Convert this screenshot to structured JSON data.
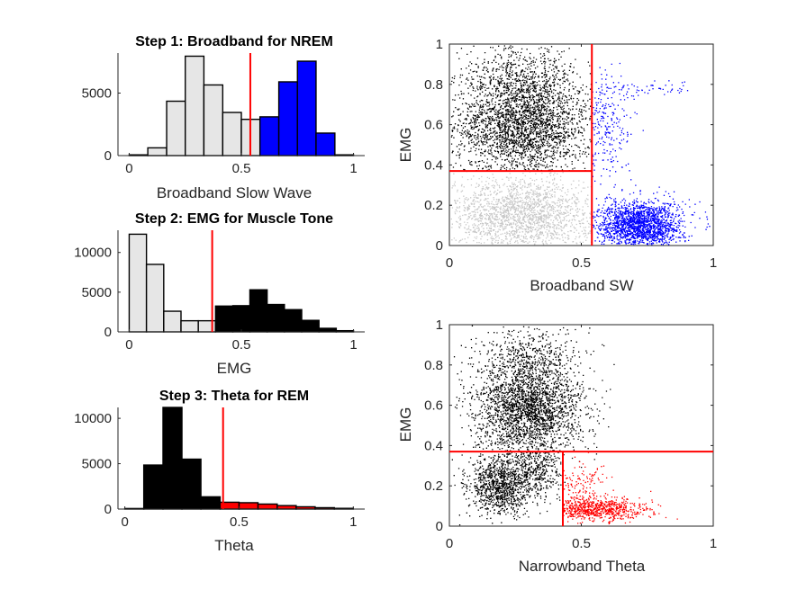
{
  "colors": {
    "nrem": "#0000ff",
    "wake": "#000000",
    "rem": "#ff0000",
    "other": "#e6e6e6",
    "scatter_gray": "#c8c8c8",
    "threshold": "#ff0000"
  },
  "chart_data": [
    {
      "id": "hist-broadband",
      "type": "bar",
      "title": "Step 1: Broadband for NREM",
      "xlabel": "Broadband Slow Wave",
      "ylabel": "",
      "xlim": [
        -0.05,
        1.05
      ],
      "ylim": [
        0,
        8200
      ],
      "x_ticks": [
        "0",
        "0.5",
        "1"
      ],
      "y_ticks": [
        "0",
        "5000"
      ],
      "bins": [
        {
          "x0": 0.0,
          "x1": 0.083,
          "value": 60,
          "group": "other"
        },
        {
          "x0": 0.083,
          "x1": 0.167,
          "value": 620,
          "group": "other"
        },
        {
          "x0": 0.167,
          "x1": 0.25,
          "value": 4350,
          "group": "other"
        },
        {
          "x0": 0.25,
          "x1": 0.333,
          "value": 7950,
          "group": "other"
        },
        {
          "x0": 0.333,
          "x1": 0.417,
          "value": 5650,
          "group": "other"
        },
        {
          "x0": 0.417,
          "x1": 0.5,
          "value": 3450,
          "group": "other"
        },
        {
          "x0": 0.5,
          "x1": 0.583,
          "value": 2900,
          "group": "other"
        },
        {
          "x0": 0.583,
          "x1": 0.667,
          "value": 3100,
          "group": "nrem"
        },
        {
          "x0": 0.667,
          "x1": 0.75,
          "value": 5900,
          "group": "nrem"
        },
        {
          "x0": 0.75,
          "x1": 0.833,
          "value": 7550,
          "group": "nrem"
        },
        {
          "x0": 0.833,
          "x1": 0.917,
          "value": 1800,
          "group": "nrem"
        },
        {
          "x0": 0.917,
          "x1": 1.0,
          "value": 60,
          "group": "nrem"
        }
      ],
      "threshold": 0.54
    },
    {
      "id": "hist-emg",
      "type": "bar",
      "title": "Step 2: EMG for Muscle Tone",
      "xlabel": "EMG",
      "ylabel": "",
      "xlim": [
        -0.05,
        1.05
      ],
      "ylim": [
        0,
        12800
      ],
      "x_ticks": [
        "0",
        "0.5",
        "1"
      ],
      "y_ticks": [
        "0",
        "5000",
        "10000"
      ],
      "bins": [
        {
          "x0": 0.0,
          "x1": 0.077,
          "value": 12300,
          "group": "other"
        },
        {
          "x0": 0.077,
          "x1": 0.154,
          "value": 8500,
          "group": "other"
        },
        {
          "x0": 0.154,
          "x1": 0.231,
          "value": 2600,
          "group": "other"
        },
        {
          "x0": 0.231,
          "x1": 0.308,
          "value": 1400,
          "group": "other"
        },
        {
          "x0": 0.308,
          "x1": 0.385,
          "value": 1400,
          "group": "other"
        },
        {
          "x0": 0.385,
          "x1": 0.462,
          "value": 3250,
          "group": "wake"
        },
        {
          "x0": 0.462,
          "x1": 0.538,
          "value": 3300,
          "group": "wake"
        },
        {
          "x0": 0.538,
          "x1": 0.615,
          "value": 5300,
          "group": "wake"
        },
        {
          "x0": 0.615,
          "x1": 0.692,
          "value": 3450,
          "group": "wake"
        },
        {
          "x0": 0.692,
          "x1": 0.769,
          "value": 2800,
          "group": "wake"
        },
        {
          "x0": 0.769,
          "x1": 0.846,
          "value": 1450,
          "group": "wake"
        },
        {
          "x0": 0.846,
          "x1": 0.923,
          "value": 450,
          "group": "wake"
        },
        {
          "x0": 0.923,
          "x1": 1.0,
          "value": 150,
          "group": "wake"
        }
      ],
      "threshold": 0.37
    },
    {
      "id": "hist-theta",
      "type": "bar",
      "title": "Step 3: Theta for REM",
      "xlabel": "Theta",
      "ylabel": "",
      "xlim": [
        -0.03,
        1.05
      ],
      "ylim": [
        0,
        11200
      ],
      "x_ticks": [
        "0",
        "0.5",
        "1"
      ],
      "y_ticks": [
        "0",
        "5000",
        "10000"
      ],
      "bins": [
        {
          "x0": 0.0,
          "x1": 0.083,
          "value": 60,
          "group": "wake"
        },
        {
          "x0": 0.083,
          "x1": 0.167,
          "value": 4850,
          "group": "wake"
        },
        {
          "x0": 0.167,
          "x1": 0.25,
          "value": 11200,
          "group": "wake"
        },
        {
          "x0": 0.25,
          "x1": 0.333,
          "value": 5500,
          "group": "wake"
        },
        {
          "x0": 0.333,
          "x1": 0.417,
          "value": 1350,
          "group": "wake"
        },
        {
          "x0": 0.417,
          "x1": 0.5,
          "value": 750,
          "group": "rem"
        },
        {
          "x0": 0.5,
          "x1": 0.583,
          "value": 700,
          "group": "rem"
        },
        {
          "x0": 0.583,
          "x1": 0.667,
          "value": 550,
          "group": "rem"
        },
        {
          "x0": 0.667,
          "x1": 0.75,
          "value": 380,
          "group": "rem"
        },
        {
          "x0": 0.75,
          "x1": 0.833,
          "value": 250,
          "group": "rem"
        },
        {
          "x0": 0.833,
          "x1": 0.917,
          "value": 150,
          "group": "rem"
        },
        {
          "x0": 0.917,
          "x1": 1.0,
          "value": 80,
          "group": "rem"
        }
      ],
      "threshold": 0.43
    },
    {
      "id": "scatter-broadband-emg",
      "type": "scatter",
      "xlabel": "Broadband SW",
      "ylabel": "EMG",
      "xlim": [
        0,
        1
      ],
      "ylim": [
        0,
        1
      ],
      "x_ticks": [
        "0",
        "0.5",
        "1"
      ],
      "y_ticks": [
        "0",
        "0.2",
        "0.4",
        "0.6",
        "0.8",
        "1"
      ],
      "threshold_x": 0.54,
      "threshold_y": 0.37,
      "clusters": [
        {
          "group": "wake",
          "cx": 0.28,
          "cy": 0.6,
          "sx": 0.13,
          "sy": 0.13,
          "n": 2600,
          "xmax": 0.54,
          "ymin": 0.37
        },
        {
          "group": "wake",
          "cx": 0.25,
          "cy": 0.85,
          "sx": 0.12,
          "sy": 0.07,
          "n": 400,
          "xmax": 0.54,
          "ymin": 0.37
        },
        {
          "group": "other",
          "cx": 0.27,
          "cy": 0.15,
          "sx": 0.14,
          "sy": 0.1,
          "n": 1800,
          "xmax": 0.54,
          "ymax": 0.37
        },
        {
          "group": "nrem",
          "cx": 0.72,
          "cy": 0.1,
          "sx": 0.08,
          "sy": 0.06,
          "n": 1800,
          "xmin": 0.54
        },
        {
          "group": "nrem",
          "cx": 0.6,
          "cy": 0.6,
          "sx": 0.05,
          "sy": 0.13,
          "n": 220,
          "xmin": 0.54
        },
        {
          "group": "nrem",
          "cx": 0.75,
          "cy": 0.78,
          "sx": 0.1,
          "sy": 0.02,
          "n": 60,
          "xmin": 0.54
        }
      ]
    },
    {
      "id": "scatter-theta-emg",
      "type": "scatter",
      "xlabel": "Narrowband Theta",
      "ylabel": "EMG",
      "xlim": [
        0,
        1
      ],
      "ylim": [
        0,
        1
      ],
      "x_ticks": [
        "0",
        "0.5",
        "1"
      ],
      "y_ticks": [
        "0",
        "0.2",
        "0.4",
        "0.6",
        "0.8",
        "1"
      ],
      "threshold_x": 0.43,
      "threshold_y": 0.37,
      "clusters": [
        {
          "group": "wake",
          "cx": 0.3,
          "cy": 0.58,
          "sx": 0.1,
          "sy": 0.13,
          "n": 2600
        },
        {
          "group": "wake",
          "cx": 0.3,
          "cy": 0.85,
          "sx": 0.1,
          "sy": 0.07,
          "n": 350
        },
        {
          "group": "wake",
          "cx": 0.19,
          "cy": 0.2,
          "sx": 0.06,
          "sy": 0.07,
          "n": 1000,
          "ymax": 0.37
        },
        {
          "group": "wake",
          "cx": 0.33,
          "cy": 0.26,
          "sx": 0.05,
          "sy": 0.06,
          "n": 300,
          "xmax": 0.43,
          "ymax": 0.37
        },
        {
          "group": "rem",
          "cx": 0.55,
          "cy": 0.08,
          "sx": 0.1,
          "sy": 0.03,
          "n": 700,
          "xmin": 0.43,
          "ymax": 0.37
        },
        {
          "group": "rem",
          "cx": 0.5,
          "cy": 0.2,
          "sx": 0.05,
          "sy": 0.06,
          "n": 120,
          "xmin": 0.43,
          "ymax": 0.37
        }
      ]
    }
  ]
}
